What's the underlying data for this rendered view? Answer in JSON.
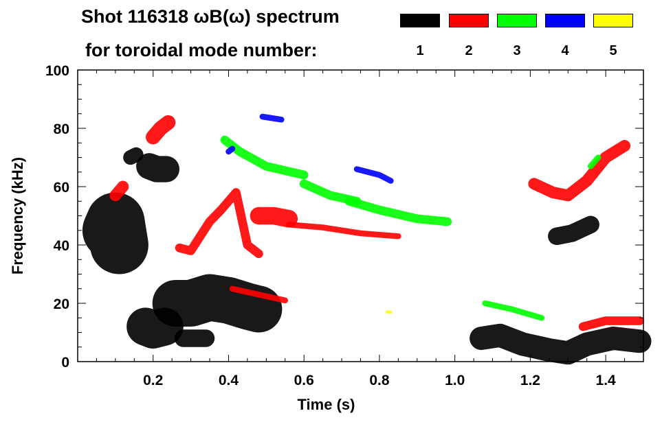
{
  "chart_data": {
    "type": "heatmap",
    "title": "Shot 116318 ωB(ω) spectrum",
    "subtitle": "for toroidal mode number:",
    "xlabel": "Time (s)",
    "ylabel": "Frequency (kHz)",
    "xlim": [
      0,
      1.5
    ],
    "ylim": [
      0,
      100
    ],
    "xticks": [
      "0.2",
      "0.4",
      "0.6",
      "0.8",
      "1.0",
      "1.2",
      "1.4"
    ],
    "xtick_values": [
      0.2,
      0.4,
      0.6,
      0.8,
      1.0,
      1.2,
      1.4
    ],
    "yticks": [
      "0",
      "20",
      "40",
      "60",
      "80",
      "100"
    ],
    "ytick_values": [
      0,
      20,
      40,
      60,
      80,
      100
    ],
    "legend": [
      {
        "label": "1",
        "color": "#000000"
      },
      {
        "label": "2",
        "color": "#ff0000"
      },
      {
        "label": "3",
        "color": "#00ff00"
      },
      {
        "label": "4",
        "color": "#0000ff"
      },
      {
        "label": "5",
        "color": "#ffff00"
      }
    ],
    "tracks": [
      {
        "mode": 1,
        "width": 20,
        "points": [
          [
            0.09,
            45
          ],
          [
            0.1,
            48
          ],
          [
            0.11,
            40
          ]
        ]
      },
      {
        "mode": 1,
        "width": 5,
        "points": [
          [
            0.14,
            70
          ],
          [
            0.155,
            71
          ]
        ]
      },
      {
        "mode": 1,
        "width": 9,
        "points": [
          [
            0.19,
            67
          ],
          [
            0.21,
            66
          ],
          [
            0.235,
            66
          ]
        ]
      },
      {
        "mode": 1,
        "width": 13,
        "points": [
          [
            0.18,
            12
          ],
          [
            0.2,
            11
          ],
          [
            0.23,
            12
          ]
        ]
      },
      {
        "mode": 1,
        "width": 16,
        "points": [
          [
            0.26,
            20
          ],
          [
            0.3,
            20
          ],
          [
            0.35,
            22
          ],
          [
            0.4,
            21
          ],
          [
            0.45,
            19
          ],
          [
            0.48,
            18
          ]
        ]
      },
      {
        "mode": 1,
        "width": 6,
        "points": [
          [
            0.28,
            8
          ],
          [
            0.34,
            8
          ]
        ]
      },
      {
        "mode": 1,
        "width": 8,
        "points": [
          [
            1.07,
            8
          ],
          [
            1.12,
            9
          ],
          [
            1.18,
            6
          ],
          [
            1.25,
            4
          ],
          [
            1.3,
            3
          ],
          [
            1.35,
            6
          ],
          [
            1.42,
            8
          ],
          [
            1.49,
            7
          ]
        ]
      },
      {
        "mode": 1,
        "width": 6,
        "points": [
          [
            1.27,
            43
          ],
          [
            1.31,
            44
          ],
          [
            1.36,
            47
          ]
        ]
      },
      {
        "mode": 2,
        "width": 5,
        "points": [
          [
            0.2,
            77
          ],
          [
            0.22,
            80
          ],
          [
            0.24,
            82
          ]
        ]
      },
      {
        "mode": 2,
        "width": 4,
        "points": [
          [
            0.1,
            57
          ],
          [
            0.12,
            60
          ]
        ]
      },
      {
        "mode": 2,
        "width": 3,
        "points": [
          [
            0.27,
            39
          ],
          [
            0.3,
            38
          ],
          [
            0.35,
            48
          ],
          [
            0.38,
            52
          ],
          [
            0.42,
            58
          ],
          [
            0.45,
            40
          ],
          [
            0.48,
            37
          ]
        ]
      },
      {
        "mode": 2,
        "width": 6,
        "points": [
          [
            0.48,
            50
          ],
          [
            0.52,
            50
          ],
          [
            0.56,
            49
          ]
        ]
      },
      {
        "mode": 2,
        "width": 2,
        "points": [
          [
            0.56,
            47
          ],
          [
            0.65,
            46
          ],
          [
            0.75,
            44
          ],
          [
            0.85,
            43
          ]
        ]
      },
      {
        "mode": 2,
        "width": 2,
        "points": [
          [
            0.41,
            25
          ],
          [
            0.48,
            23
          ],
          [
            0.55,
            21
          ]
        ]
      },
      {
        "mode": 2,
        "width": 4,
        "points": [
          [
            1.21,
            61
          ],
          [
            1.26,
            58
          ],
          [
            1.3,
            57
          ],
          [
            1.35,
            62
          ],
          [
            1.4,
            70
          ],
          [
            1.45,
            74
          ]
        ]
      },
      {
        "mode": 2,
        "width": 3,
        "points": [
          [
            1.34,
            12
          ],
          [
            1.4,
            14
          ],
          [
            1.49,
            14
          ]
        ]
      },
      {
        "mode": 3,
        "width": 3,
        "points": [
          [
            0.39,
            76
          ],
          [
            0.43,
            72
          ],
          [
            0.5,
            67
          ],
          [
            0.6,
            64
          ]
        ]
      },
      {
        "mode": 3,
        "width": 3,
        "points": [
          [
            0.6,
            61
          ],
          [
            0.67,
            57
          ],
          [
            0.74,
            55
          ]
        ]
      },
      {
        "mode": 3,
        "width": 3,
        "points": [
          [
            0.72,
            55
          ],
          [
            0.8,
            52
          ],
          [
            0.9,
            49
          ],
          [
            0.98,
            48
          ]
        ]
      },
      {
        "mode": 3,
        "width": 2,
        "points": [
          [
            1.08,
            20
          ],
          [
            1.15,
            18
          ],
          [
            1.23,
            15
          ]
        ]
      },
      {
        "mode": 3,
        "width": 2,
        "points": [
          [
            1.36,
            67
          ],
          [
            1.38,
            70
          ]
        ]
      },
      {
        "mode": 4,
        "width": 2,
        "points": [
          [
            0.49,
            84
          ],
          [
            0.54,
            83
          ]
        ]
      },
      {
        "mode": 4,
        "width": 2,
        "points": [
          [
            0.74,
            66
          ],
          [
            0.8,
            64
          ],
          [
            0.83,
            62
          ]
        ]
      },
      {
        "mode": 4,
        "width": 2,
        "points": [
          [
            0.4,
            72
          ],
          [
            0.41,
            73
          ]
        ]
      },
      {
        "mode": 5,
        "width": 1,
        "points": [
          [
            0.82,
            17
          ],
          [
            0.83,
            17
          ]
        ]
      }
    ]
  }
}
